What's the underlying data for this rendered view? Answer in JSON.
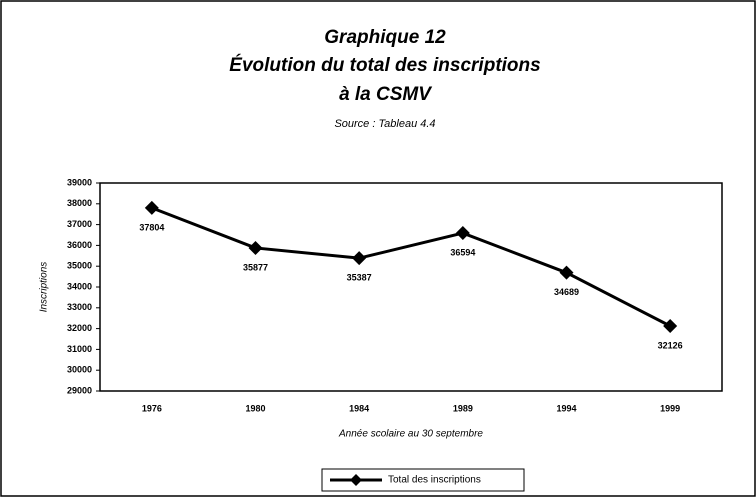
{
  "chart_data": {
    "type": "line",
    "title": [
      "Graphique 12",
      "Évolution du total des inscriptions",
      "à la CSMV"
    ],
    "subtitle": "Source : Tableau 4.4",
    "x_label": "Année scolaire au 30 septembre",
    "y_label": "Inscriptions",
    "categories": [
      "1976",
      "1980",
      "1984",
      "1989",
      "1994",
      "1999"
    ],
    "series": [
      {
        "name": "Total des inscriptions",
        "color": "#000000",
        "values": [
          37804,
          35877,
          35387,
          36594,
          34689,
          32126
        ]
      }
    ],
    "ylim": [
      29000,
      39000
    ],
    "yticks": [
      29000,
      30000,
      31000,
      32000,
      33000,
      34000,
      35000,
      36000,
      37000,
      38000,
      39000
    ],
    "grid": false
  }
}
